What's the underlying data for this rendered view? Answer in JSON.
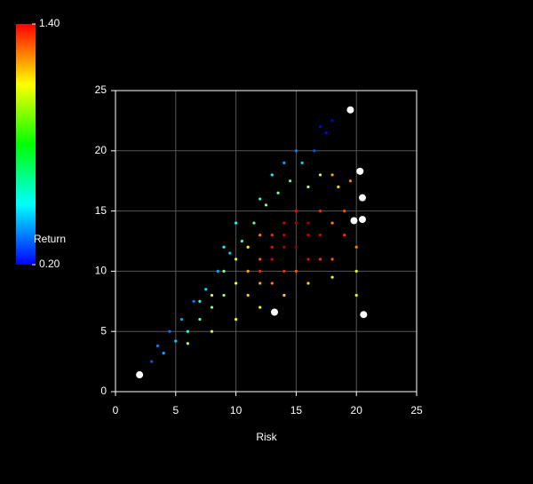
{
  "chart_data": {
    "type": "scatter",
    "x_label": "Risk",
    "colorbar_label": "Return",
    "clim": [
      0.2,
      1.4
    ],
    "cticks": [
      {
        "value": 0.2,
        "label": "0.20"
      },
      {
        "value": 1.4,
        "label": "1.40"
      }
    ],
    "colormap": "jet",
    "xlim": [
      0,
      25
    ],
    "ylim": [
      0,
      25
    ],
    "xticks": [
      0,
      5,
      10,
      15,
      20,
      25
    ],
    "yticks": [
      0,
      5,
      10,
      15,
      20,
      25
    ],
    "grid": true,
    "x": [
      3,
      3.5,
      4,
      4.5,
      5,
      5.5,
      6,
      6.5,
      7,
      7.5,
      8,
      8.5,
      9,
      9.5,
      10,
      10.5,
      11,
      11.5,
      12,
      12.5,
      13,
      13.5,
      14,
      14.5,
      15,
      15.5,
      16,
      16.5,
      17,
      17.5,
      18,
      18.5,
      19,
      19.5,
      6,
      8,
      10,
      12,
      14,
      16,
      18,
      20,
      12,
      13,
      14,
      15,
      14,
      13,
      15,
      16,
      12,
      11,
      10,
      9,
      11,
      13,
      15,
      17,
      16,
      17,
      14,
      12,
      8,
      7,
      9,
      10,
      12,
      13,
      14,
      15,
      17,
      18,
      16,
      17,
      18,
      19,
      20,
      18,
      20
    ],
    "y": [
      2.5,
      3.8,
      3.2,
      5,
      4.2,
      6,
      5,
      7.5,
      6,
      8.5,
      7,
      10,
      8,
      11.5,
      9,
      12.5,
      10,
      14,
      11,
      15.5,
      12,
      16.5,
      13,
      17.5,
      14,
      19,
      13,
      20,
      15,
      21.5,
      14,
      17,
      15,
      17.5,
      4,
      5,
      6,
      7,
      8,
      9,
      9.5,
      10,
      10,
      11,
      12,
      12,
      14,
      13,
      15,
      14,
      13,
      12,
      11,
      10,
      8,
      9,
      10,
      11,
      11,
      13,
      10,
      9,
      8,
      7.5,
      12,
      14,
      16,
      18,
      19,
      20,
      22,
      22.5,
      17,
      18,
      18,
      13,
      12,
      11,
      8
    ],
    "values": [
      0.45,
      0.5,
      0.55,
      0.5,
      0.6,
      0.55,
      0.7,
      0.5,
      0.75,
      0.6,
      0.8,
      0.55,
      0.85,
      0.6,
      0.95,
      0.7,
      1.05,
      0.75,
      1.15,
      0.8,
      1.25,
      0.8,
      1.3,
      0.75,
      1.35,
      0.6,
      1.3,
      0.45,
      1.2,
      0.35,
      1.1,
      1.0,
      1.15,
      1.1,
      0.85,
      0.9,
      0.95,
      0.95,
      1.0,
      1.0,
      0.95,
      0.9,
      1.2,
      1.3,
      1.35,
      1.38,
      1.3,
      1.2,
      1.25,
      1.35,
      1.1,
      0.95,
      0.9,
      0.8,
      1.0,
      1.1,
      1.15,
      1.2,
      1.25,
      1.3,
      1.2,
      1.05,
      0.9,
      0.7,
      0.65,
      0.65,
      0.7,
      0.65,
      0.55,
      0.5,
      0.35,
      0.3,
      0.85,
      0.9,
      1.05,
      1.2,
      1.1,
      1.15,
      0.9
    ],
    "highlight": {
      "color": "#ffffff",
      "x": [
        2,
        13.2,
        19.5,
        20.3,
        20.5,
        19.8,
        20.5,
        20.6
      ],
      "y": [
        1.4,
        6.6,
        23.4,
        18.3,
        16.1,
        14.2,
        14.3,
        6.4
      ]
    }
  }
}
